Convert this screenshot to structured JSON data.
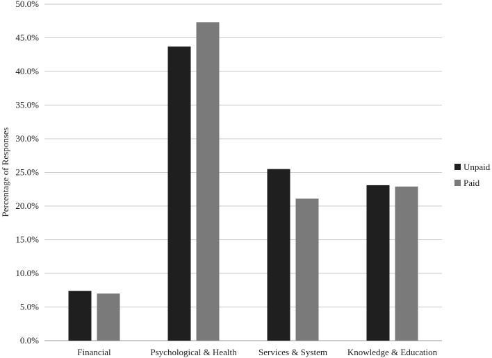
{
  "chart_data": {
    "type": "bar",
    "title": "",
    "xlabel": "",
    "ylabel": "Percentage of Responses",
    "ylim": [
      0,
      50
    ],
    "yticks": [
      "0.0%",
      "5.0%",
      "10.0%",
      "15.0%",
      "20.0%",
      "25.0%",
      "30.0%",
      "35.0%",
      "40.0%",
      "45.0%",
      "50.0%"
    ],
    "categories": [
      "Financial",
      "Psychological & Health",
      "Services & System",
      "Knowledge & Education"
    ],
    "series": [
      {
        "name": "Unpaid",
        "color": "#1f1f1f",
        "values": [
          7.4,
          43.7,
          25.5,
          23.1
        ]
      },
      {
        "name": "Paid",
        "color": "#7a7a7a",
        "values": [
          7.0,
          47.3,
          21.1,
          22.9
        ]
      }
    ],
    "grid": true,
    "legend_position": "right"
  }
}
